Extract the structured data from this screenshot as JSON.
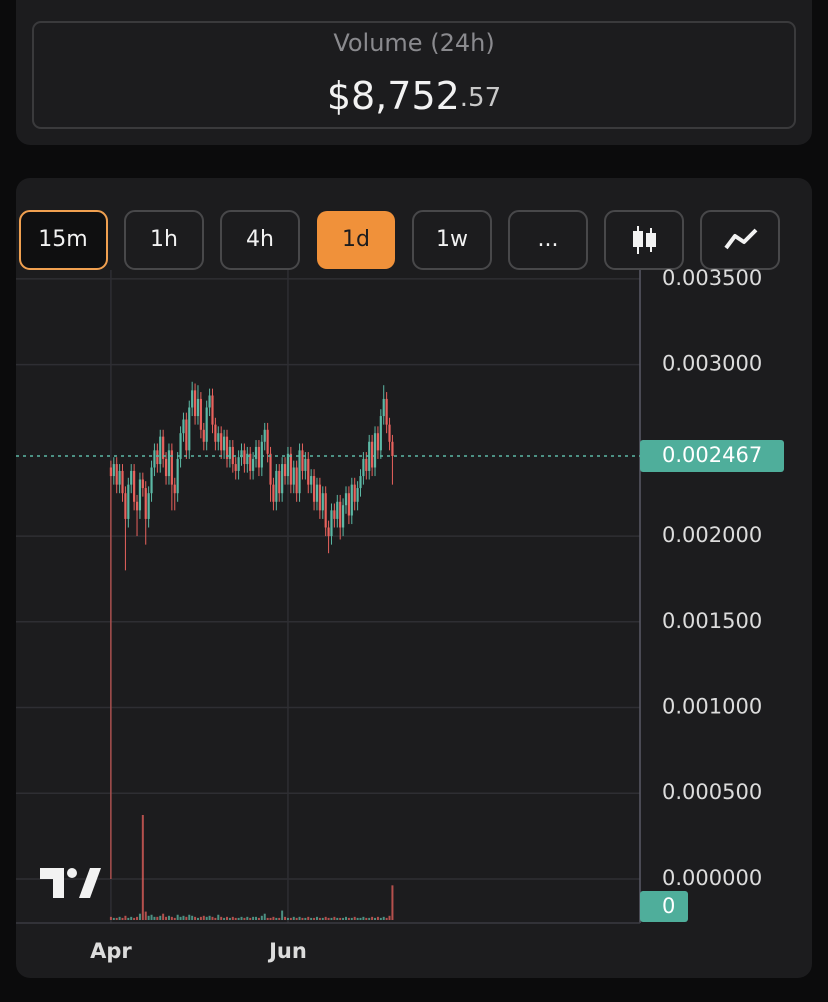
{
  "volume_card": {
    "label": "Volume (24h)",
    "value": "$8,752",
    "value_cents": ".57"
  },
  "toolbar": {
    "intervals": [
      "15m",
      "1h",
      "4h",
      "1d",
      "1w",
      "..."
    ]
  },
  "chart_data": {
    "type": "candlestick",
    "x": [
      0,
      1,
      2,
      3,
      4,
      5,
      6,
      7,
      8,
      9,
      10,
      11,
      12,
      13,
      14,
      15,
      16,
      17,
      18,
      19,
      20,
      21,
      22,
      23,
      24,
      25,
      26,
      27,
      28,
      29,
      30,
      31,
      32,
      33,
      34,
      35,
      36,
      37,
      38,
      39,
      40,
      41,
      42,
      43,
      44,
      45,
      46,
      47,
      48,
      49,
      50,
      51,
      52,
      53,
      54,
      55,
      56,
      57,
      58,
      59,
      60,
      61,
      62,
      63,
      64,
      65,
      66,
      67,
      68,
      69,
      70,
      71,
      72,
      73,
      74,
      75,
      76,
      77,
      78,
      79,
      80,
      81,
      82,
      83,
      84,
      85,
      86,
      87,
      88,
      89,
      90,
      91,
      92,
      93,
      94,
      95,
      96,
      97
    ],
    "xlim": [
      -32.7,
      182.3
    ],
    "xticks": [
      {
        "value": 0,
        "label": "Apr"
      },
      {
        "value": 61,
        "label": "Jun"
      }
    ],
    "open": [
      0.0024,
      0.00235,
      0.00242,
      0.0023,
      0.00238,
      0.00225,
      0.0021,
      0.0023,
      0.00238,
      0.0022,
      0.00215,
      0.00233,
      0.00228,
      0.0021,
      0.00225,
      0.0024,
      0.0025,
      0.00242,
      0.00258,
      0.00245,
      0.00235,
      0.0025,
      0.0023,
      0.00225,
      0.00245,
      0.0026,
      0.00268,
      0.0025,
      0.00275,
      0.00285,
      0.0027,
      0.0028,
      0.00262,
      0.00255,
      0.00275,
      0.00282,
      0.00265,
      0.00255,
      0.0026,
      0.0025,
      0.00258,
      0.00245,
      0.00252,
      0.00242,
      0.00238,
      0.00246,
      0.0025,
      0.00242,
      0.00248,
      0.00238,
      0.00245,
      0.00252,
      0.0024,
      0.00255,
      0.00262,
      0.00248,
      0.0023,
      0.0022,
      0.00238,
      0.00225,
      0.00242,
      0.00235,
      0.00248,
      0.0023,
      0.0024,
      0.00225,
      0.0025,
      0.00238,
      0.00245,
      0.0023,
      0.00235,
      0.0022,
      0.0023,
      0.00215,
      0.00225,
      0.00205,
      0.002,
      0.00215,
      0.0021,
      0.0022,
      0.00205,
      0.00218,
      0.00225,
      0.00212,
      0.0023,
      0.0022,
      0.00228,
      0.00235,
      0.00245,
      0.00238,
      0.00255,
      0.0024,
      0.0026,
      0.0025,
      0.0027,
      0.0028,
      0.00265,
      0.00255
    ],
    "high": [
      0.00244,
      0.00246,
      0.00246,
      0.00242,
      0.00242,
      0.00229,
      0.00234,
      0.00242,
      0.00242,
      0.00224,
      0.00237,
      0.00237,
      0.00232,
      0.00229,
      0.00244,
      0.00254,
      0.00254,
      0.00262,
      0.00262,
      0.00249,
      0.00254,
      0.00254,
      0.00234,
      0.00249,
      0.00264,
      0.00272,
      0.00272,
      0.00279,
      0.0029,
      0.00289,
      0.00288,
      0.00284,
      0.00266,
      0.00279,
      0.00286,
      0.00286,
      0.00269,
      0.00264,
      0.00264,
      0.00262,
      0.00262,
      0.00256,
      0.00256,
      0.00246,
      0.0025,
      0.00254,
      0.00254,
      0.00252,
      0.00252,
      0.00249,
      0.00256,
      0.00256,
      0.00259,
      0.00266,
      0.00266,
      0.00252,
      0.00234,
      0.00242,
      0.00242,
      0.00246,
      0.00246,
      0.00252,
      0.00252,
      0.00244,
      0.00244,
      0.00254,
      0.00254,
      0.00249,
      0.00249,
      0.00239,
      0.00239,
      0.00234,
      0.00234,
      0.00229,
      0.00229,
      0.00209,
      0.00219,
      0.00219,
      0.00224,
      0.00224,
      0.00222,
      0.00229,
      0.00229,
      0.00234,
      0.00234,
      0.00232,
      0.00239,
      0.00249,
      0.00249,
      0.00259,
      0.00259,
      0.00264,
      0.00264,
      0.00274,
      0.00288,
      0.00284,
      0.00269,
      0.00259
    ],
    "low": [
      0,
      0.0023,
      0.00225,
      0.00225,
      0.0022,
      0.0018,
      0.00205,
      0.00225,
      0.00215,
      0.002,
      0.0021,
      0.00223,
      0.00195,
      0.00205,
      0.0022,
      0.00235,
      0.00237,
      0.00237,
      0.0024,
      0.0023,
      0.0023,
      0.00215,
      0.00215,
      0.0022,
      0.0024,
      0.00255,
      0.00245,
      0.00245,
      0.0027,
      0.00265,
      0.00265,
      0.00257,
      0.0025,
      0.0025,
      0.0027,
      0.0026,
      0.0025,
      0.0025,
      0.00245,
      0.00245,
      0.0024,
      0.0024,
      0.00237,
      0.00233,
      0.00233,
      0.00241,
      0.00237,
      0.00237,
      0.00233,
      0.00233,
      0.0024,
      0.00235,
      0.00235,
      0.0025,
      0.00243,
      0.0022,
      0.00215,
      0.00215,
      0.0022,
      0.0022,
      0.0023,
      0.0023,
      0.00225,
      0.00225,
      0.0022,
      0.0022,
      0.00233,
      0.00233,
      0.00225,
      0.00225,
      0.00215,
      0.00215,
      0.0021,
      0.0021,
      0.002,
      0.0019,
      0.00195,
      0.00205,
      0.00205,
      0.00198,
      0.002,
      0.00213,
      0.00207,
      0.00207,
      0.00215,
      0.00215,
      0.00223,
      0.0023,
      0.00233,
      0.00233,
      0.00235,
      0.00235,
      0.00245,
      0.00245,
      0.00265,
      0.0026,
      0.0025,
      0.0023
    ],
    "close": [
      0.00235,
      0.00242,
      0.0023,
      0.00238,
      0.00225,
      0.0021,
      0.0023,
      0.00238,
      0.0022,
      0.00215,
      0.00233,
      0.00228,
      0.0021,
      0.00225,
      0.0024,
      0.0025,
      0.00242,
      0.00258,
      0.00245,
      0.00235,
      0.0025,
      0.0023,
      0.00225,
      0.00245,
      0.0026,
      0.00268,
      0.0025,
      0.00275,
      0.00285,
      0.0027,
      0.0028,
      0.00262,
      0.00255,
      0.00275,
      0.00282,
      0.00265,
      0.00255,
      0.0026,
      0.0025,
      0.00258,
      0.00245,
      0.00252,
      0.00242,
      0.00238,
      0.00246,
      0.0025,
      0.00242,
      0.00248,
      0.00238,
      0.00245,
      0.00252,
      0.0024,
      0.00255,
      0.00262,
      0.00248,
      0.0023,
      0.0022,
      0.00238,
      0.00225,
      0.00242,
      0.00235,
      0.00248,
      0.0023,
      0.0024,
      0.00225,
      0.0025,
      0.00238,
      0.00245,
      0.0023,
      0.00235,
      0.0022,
      0.0023,
      0.00215,
      0.00225,
      0.00205,
      0.002,
      0.00215,
      0.0021,
      0.0022,
      0.00205,
      0.00218,
      0.00225,
      0.00212,
      0.0023,
      0.0022,
      0.00228,
      0.00235,
      0.00245,
      0.00238,
      0.00255,
      0.0024,
      0.0026,
      0.0025,
      0.0027,
      0.0028,
      0.00265,
      0.00255,
      0.002467
    ],
    "up_color": "#5cb8a5",
    "down_color": "#e8625d",
    "ylim": [
      -0.000257,
      0.003552
    ],
    "yticks": [
      {
        "value": 0,
        "label": "0.000000"
      },
      {
        "value": 0.0005,
        "label": "0.000500"
      },
      {
        "value": 0.001,
        "label": "0.001000"
      },
      {
        "value": 0.0015,
        "label": "0.001500"
      },
      {
        "value": 0.002,
        "label": "0.002000"
      },
      {
        "value": 0.003,
        "label": "0.003000"
      },
      {
        "value": 0.0035,
        "label": "0.003500"
      }
    ],
    "last_price": 0.002467,
    "volume": [
      3,
      2,
      2,
      3,
      2,
      4,
      2,
      3,
      2,
      3,
      6,
      100,
      8,
      4,
      5,
      3,
      3,
      4,
      6,
      3,
      4,
      3,
      2,
      5,
      3,
      4,
      3,
      5,
      4,
      3,
      2,
      3,
      4,
      3,
      4,
      3,
      2,
      5,
      3,
      2,
      3,
      2,
      3,
      2,
      2,
      3,
      2,
      3,
      2,
      3,
      3,
      2,
      4,
      6,
      2,
      2,
      3,
      2,
      2,
      9,
      3,
      2,
      2,
      3,
      2,
      3,
      2,
      2,
      3,
      2,
      2,
      3,
      2,
      2,
      3,
      2,
      2,
      3,
      2,
      2,
      2,
      3,
      2,
      2,
      3,
      2,
      2,
      3,
      2,
      2,
      3,
      2,
      3,
      2,
      3,
      2,
      4,
      33
    ],
    "y2lim": [
      0,
      100
    ],
    "y2ticks": [
      0
    ],
    "grid": true
  }
}
